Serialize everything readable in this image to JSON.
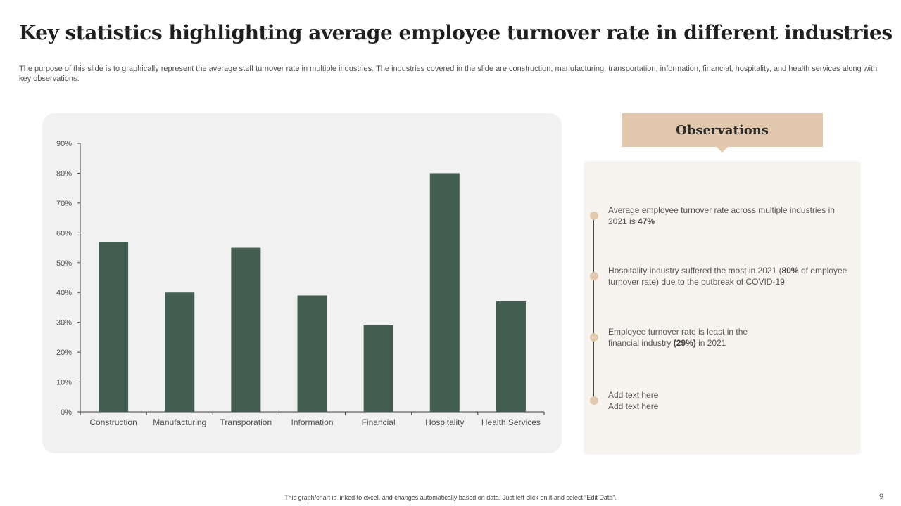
{
  "slide": {
    "title": "Key statistics highlighting average employee turnover rate in different industries",
    "subtitle": "The purpose of this slide is to graphically represent the average staff turnover rate in multiple industries. The industries covered in the slide are construction, manufacturing, transportation, information, financial, hospitality, and health services along with key observations.",
    "footer_note": "This graph/chart is linked to excel, and changes automatically based on data. Just left click on it and select “Edit Data”.",
    "page_number": "9"
  },
  "chart_data": {
    "type": "bar",
    "title": "",
    "xlabel": "",
    "ylabel": "",
    "categories": [
      "Construction",
      "Manufacturing",
      "Transporation",
      "Information",
      "Financial",
      "Hospitality",
      "Health Services"
    ],
    "values": [
      57,
      40,
      55,
      39,
      29,
      80,
      37
    ],
    "ylim": [
      0,
      90
    ],
    "yticks": [
      0,
      10,
      20,
      30,
      40,
      50,
      60,
      70,
      80,
      90
    ],
    "ytick_labels": [
      "0%",
      "10%",
      "20%",
      "30%",
      "40%",
      "50%",
      "60%",
      "70%",
      "80%",
      "90%"
    ],
    "grid": false,
    "bar_color": "#435e50"
  },
  "observations": {
    "header": "Observations",
    "items": [
      {
        "before": "Average  employee turnover  rate across multiple industries in 2021 is ",
        "bold": "47%",
        "after": ""
      },
      {
        "before": "Hospitality industry suffered  the most in 2021 (",
        "bold": "80%",
        "after": "  of employee turnover  rate) due to the outbreak of COVID-19"
      },
      {
        "before": "Employee turnover  rate is least in the financial industry ",
        "bold": "(29%)",
        "after": "  in 2021"
      },
      {
        "before": "Add text here",
        "bold": "",
        "after": "",
        "line2": "Add text here"
      }
    ]
  },
  "colors": {
    "accent": "#e2c9ad",
    "bar": "#435e50",
    "panel": "#f1f1f1",
    "obs_box": "#f7f4ef"
  }
}
